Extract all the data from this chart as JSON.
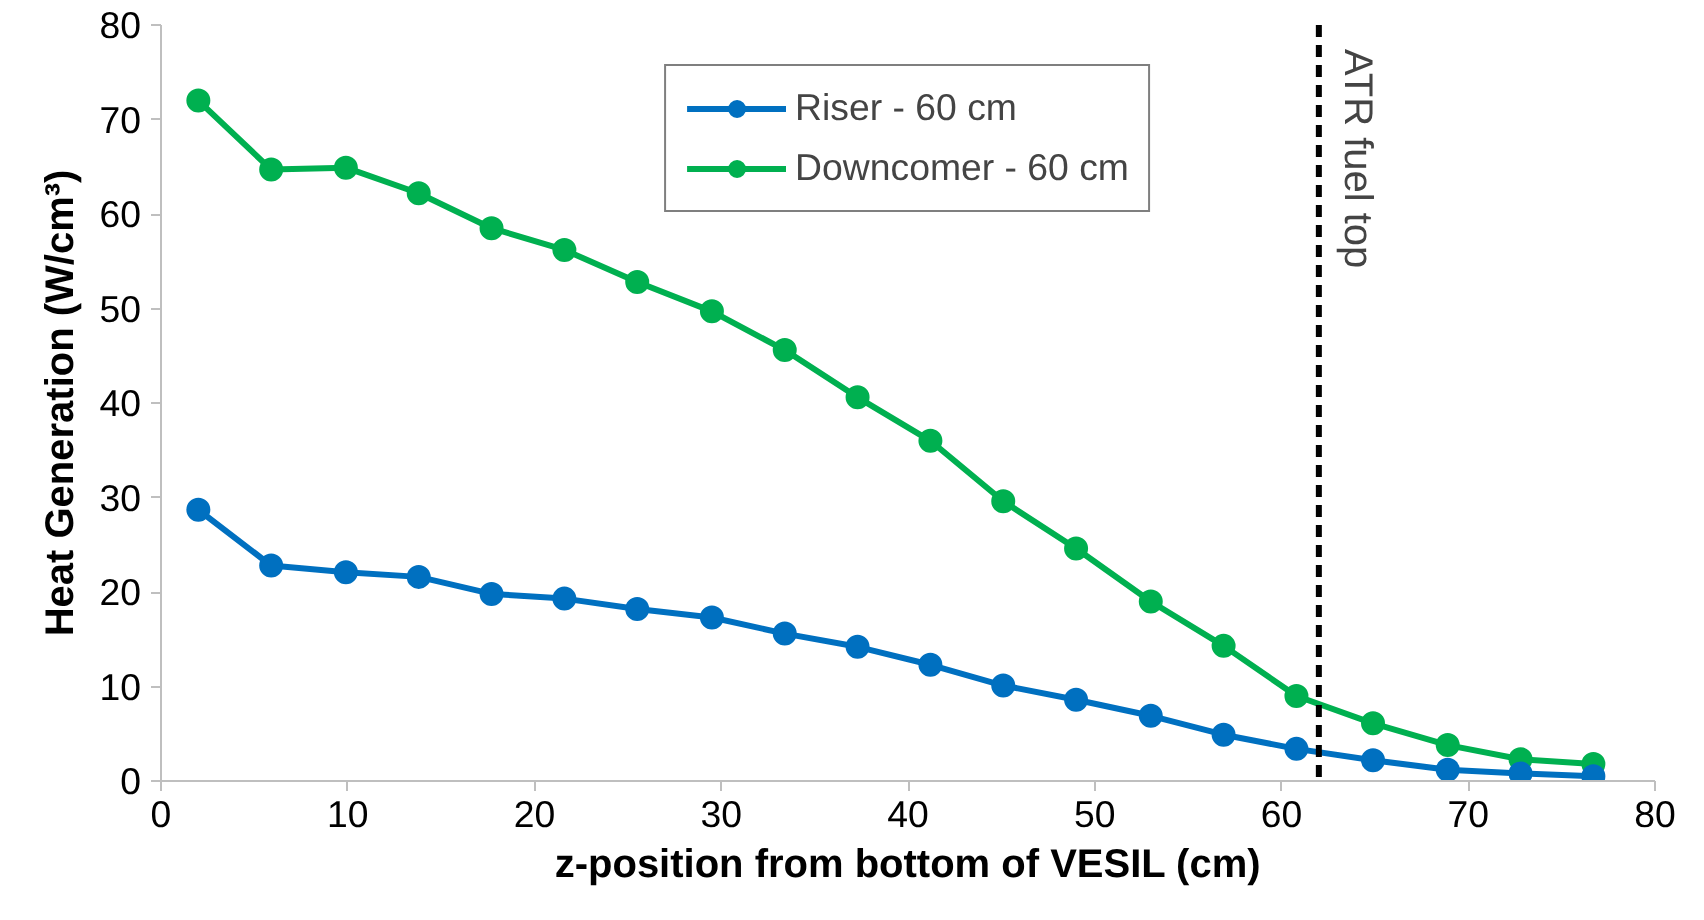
{
  "chart_data": {
    "type": "line",
    "xlabel": "z-position from bottom of VESIL (cm)",
    "ylabel": "Heat Generation (W/cm³)",
    "x": [
      2.0,
      5.9,
      9.9,
      13.8,
      17.7,
      21.6,
      25.5,
      29.5,
      33.4,
      37.3,
      41.2,
      45.1,
      49.0,
      53.0,
      56.9,
      60.8,
      64.9,
      68.9,
      72.8,
      76.7
    ],
    "series": [
      {
        "name": "Riser - 60 cm",
        "color": "#0070c0",
        "values": [
          28.7,
          22.8,
          22.1,
          21.6,
          19.8,
          19.3,
          18.2,
          17.3,
          15.6,
          14.2,
          12.3,
          10.1,
          8.6,
          6.9,
          4.9,
          3.4,
          2.2,
          1.2,
          0.8,
          0.5
        ]
      },
      {
        "name": "Downcomer - 60 cm",
        "color": "#00b050",
        "values": [
          72.0,
          64.7,
          64.9,
          62.2,
          58.5,
          56.2,
          52.8,
          49.7,
          45.6,
          40.6,
          36.0,
          29.6,
          24.6,
          19.0,
          14.3,
          9.0,
          6.1,
          3.8,
          2.3,
          1.8
        ]
      }
    ],
    "xlim": [
      0,
      80
    ],
    "xticks": [
      0,
      10,
      20,
      30,
      40,
      50,
      60,
      70,
      80
    ],
    "ylim": [
      0,
      80
    ],
    "yticks": [
      0,
      10,
      20,
      30,
      40,
      50,
      60,
      70,
      80
    ],
    "ref_lines": [
      {
        "axis": "x",
        "value": 62,
        "label": "ATR fuel top",
        "color": "#000000",
        "line_style": "dashed"
      }
    ],
    "grid": false,
    "legend": "top",
    "marker": "circle",
    "line_style": "solid"
  }
}
